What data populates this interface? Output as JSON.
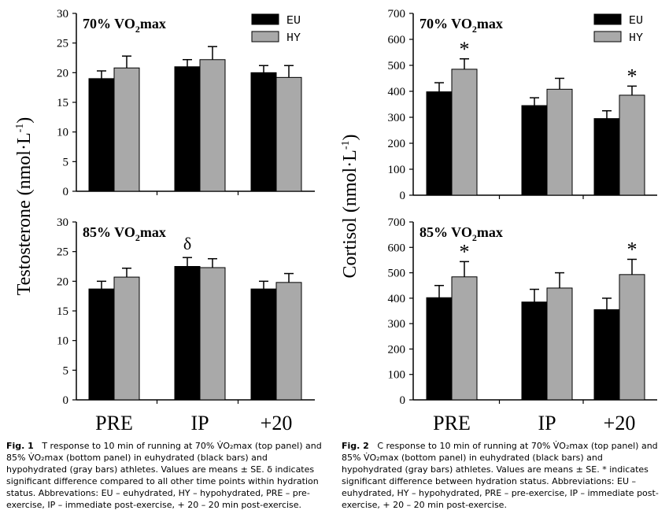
{
  "captions": [
    {
      "fig": "Fig. 1",
      "text": "T response to 10 min of running at 70% V̇O₂max (top panel) and 85% V̇O₂max (bottom panel) in euhydrated (black bars) and hypohydrated (gray bars) athletes. Values are means ± SE. δ indicates significant difference compared to all other time points within hydration status. Abbrevations: EU – euhydrated, HY – hypohydrated, PRE – pre-exercise, IP – immediate post-exercise, + 20 – 20 min post-exercise."
    },
    {
      "fig": "Fig. 2",
      "text": "C response to 10 min of running at 70% V̇O₂max (top panel) and 85% V̇O₂max (bottom panel) in euhydrated (black bars) and hypohydrated (gray bars) athletes. Values are means ± SE. * indicates significant difference between hydration status. Abbreviations: EU – euhydrated, HY – hypohydrated, PRE – pre-exercise, IP – immediate post-exercise, + 20 – 20 min post-exercise."
    }
  ],
  "colors": {
    "EU": "#000000",
    "HY": "#a9a9a9"
  },
  "chart_data": [
    {
      "type": "bar",
      "panel_label": "70% VO2max",
      "ylabel": "Testosterone (nmol·L-1)",
      "categories": [
        "PRE",
        "IP",
        "+20"
      ],
      "ylim": [
        0,
        30
      ],
      "yticks": [
        0,
        5,
        10,
        15,
        20,
        25,
        30
      ],
      "legend": [
        "EU",
        "HY"
      ],
      "series": [
        {
          "name": "EU",
          "values": [
            19,
            21,
            20
          ],
          "errors": [
            1.3,
            1.2,
            1.2
          ]
        },
        {
          "name": "HY",
          "values": [
            20.8,
            22.2,
            19.2
          ],
          "errors": [
            2.0,
            2.2,
            2.0
          ]
        }
      ],
      "markers": []
    },
    {
      "type": "bar",
      "panel_label": "85% VO2max",
      "ylabel": "Testosterone (nmol·L-1)",
      "categories": [
        "PRE",
        "IP",
        "+20"
      ],
      "ylim": [
        0,
        30
      ],
      "yticks": [
        0,
        5,
        10,
        15,
        20,
        25,
        30
      ],
      "series": [
        {
          "name": "EU",
          "values": [
            18.7,
            22.5,
            18.7
          ],
          "errors": [
            1.3,
            1.5,
            1.3
          ]
        },
        {
          "name": "HY",
          "values": [
            20.7,
            22.3,
            19.8
          ],
          "errors": [
            1.5,
            1.5,
            1.5
          ]
        }
      ],
      "markers": [
        {
          "category": "IP",
          "series": "EU",
          "symbol": "δ"
        }
      ]
    },
    {
      "type": "bar",
      "panel_label": "70% VO2max",
      "ylabel": "Cortisol (nmol·L-1)",
      "categories": [
        "PRE",
        "IP",
        "+20"
      ],
      "ylim": [
        0,
        700
      ],
      "yticks": [
        0,
        100,
        200,
        300,
        400,
        500,
        600,
        700
      ],
      "legend": [
        "EU",
        "HY"
      ],
      "series": [
        {
          "name": "EU",
          "values": [
            398,
            345,
            295
          ],
          "errors": [
            35,
            30,
            30
          ]
        },
        {
          "name": "HY",
          "values": [
            485,
            408,
            385
          ],
          "errors": [
            40,
            42,
            35
          ]
        }
      ],
      "markers": [
        {
          "category": "PRE",
          "series": "HY",
          "symbol": "*"
        },
        {
          "category": "+20",
          "series": "HY",
          "symbol": "*"
        }
      ]
    },
    {
      "type": "bar",
      "panel_label": "85% VO2max",
      "ylabel": "Cortisol (nmol·L-1)",
      "categories": [
        "PRE",
        "IP",
        "+20"
      ],
      "ylim": [
        0,
        700
      ],
      "yticks": [
        0,
        100,
        200,
        300,
        400,
        500,
        600,
        700
      ],
      "series": [
        {
          "name": "EU",
          "values": [
            402,
            385,
            355
          ],
          "errors": [
            48,
            50,
            45
          ]
        },
        {
          "name": "HY",
          "values": [
            484,
            440,
            493
          ],
          "errors": [
            60,
            60,
            60
          ]
        }
      ],
      "markers": [
        {
          "category": "PRE",
          "series": "HY",
          "symbol": "*"
        },
        {
          "category": "+20",
          "series": "HY",
          "symbol": "*"
        }
      ]
    }
  ]
}
